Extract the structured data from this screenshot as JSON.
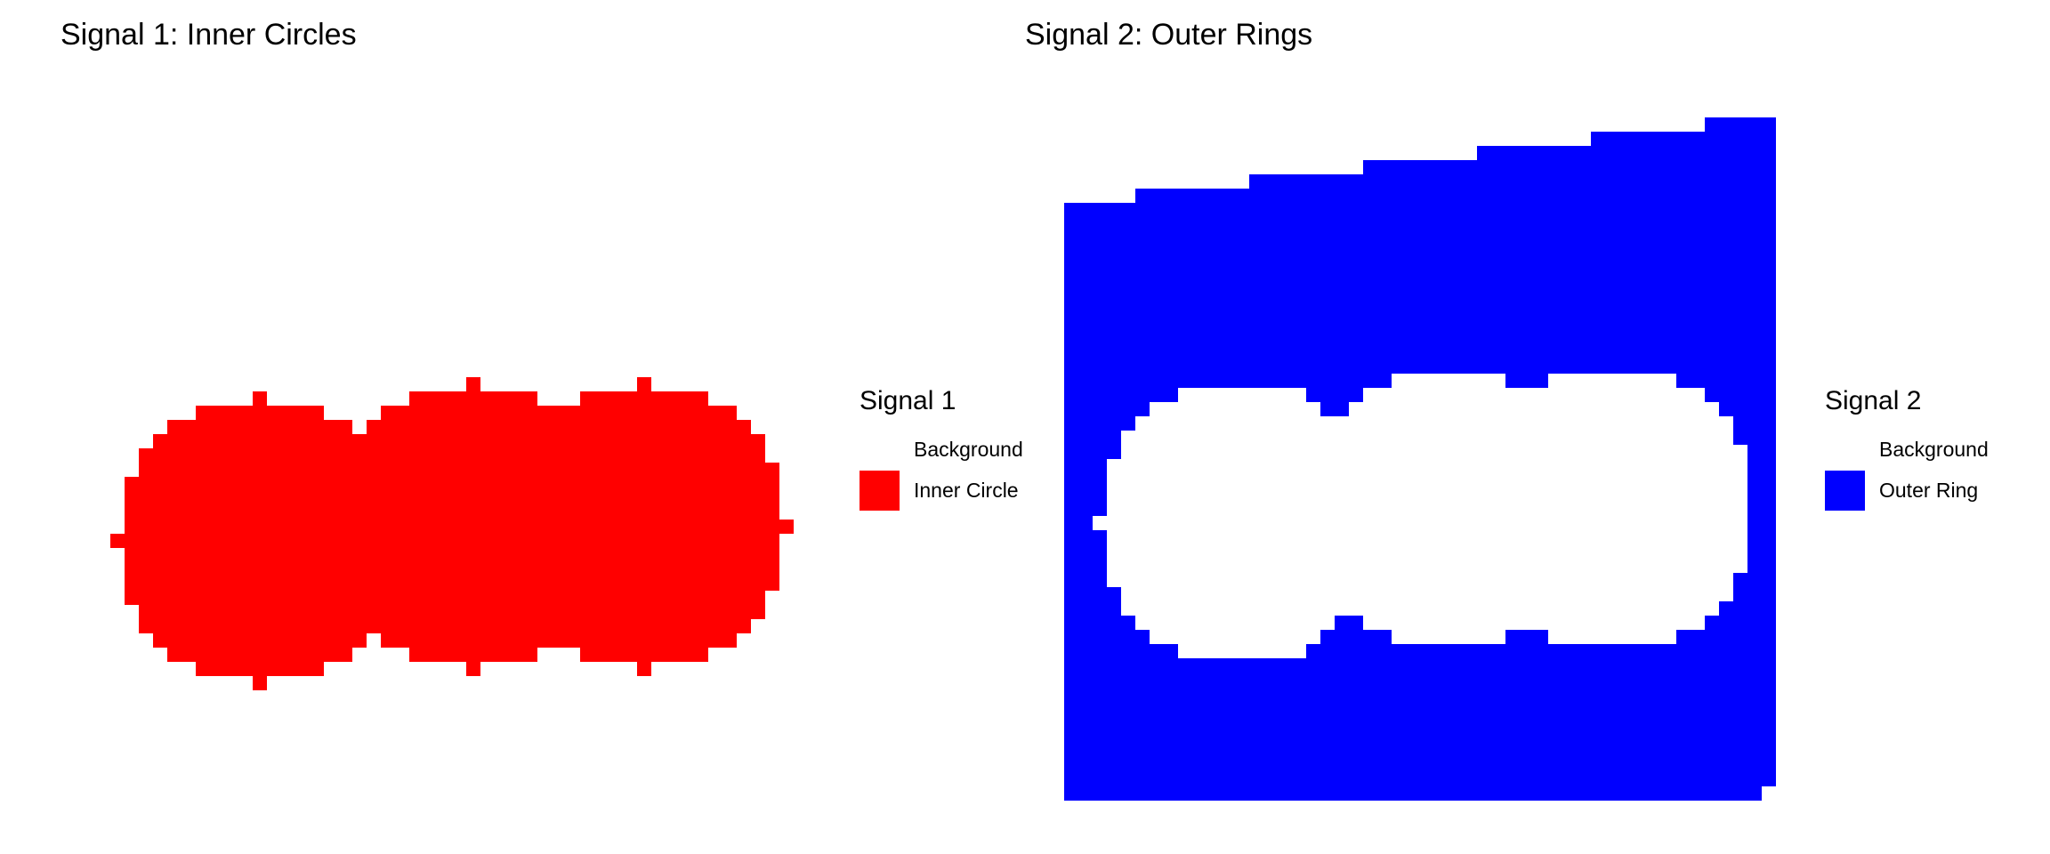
{
  "chart_data": [
    {
      "type": "heatmap",
      "title": "Signal 1: Inner Circles",
      "legend_title": "Signal 1",
      "legend": [
        {
          "label": "Background",
          "color": "#ffffff"
        },
        {
          "label": "Inner Circle",
          "color": "#ff0000"
        }
      ],
      "legend_placement": "right",
      "grid": false,
      "axes": false,
      "description_of_values": "binary mask: 1 = Inner Circle, 0 = Background; union of three overlapping circles",
      "circles": [
        {
          "cx": 10,
          "cy": 15,
          "r": 10
        },
        {
          "cx": 25,
          "cy": 14,
          "r": 10
        },
        {
          "cx": 37,
          "cy": 14,
          "r": 10
        }
      ]
    },
    {
      "type": "heatmap",
      "title": "Signal 2: Outer Rings",
      "legend_title": "Signal 2",
      "legend": [
        {
          "label": "Background",
          "color": "#ffffff"
        },
        {
          "label": "Outer Ring",
          "color": "#0000ff"
        }
      ],
      "legend_placement": "right",
      "grid": false,
      "axes": false,
      "description_of_values": "binary mask: 1 = Outer Ring, 0 = Background; filled region surrounding an inner hole",
      "circles": [
        {
          "cx": 10,
          "cy": 15,
          "r": 10
        },
        {
          "cx": 25,
          "cy": 14,
          "r": 10
        },
        {
          "cx": 37,
          "cy": 14,
          "r": 10
        }
      ]
    }
  ]
}
